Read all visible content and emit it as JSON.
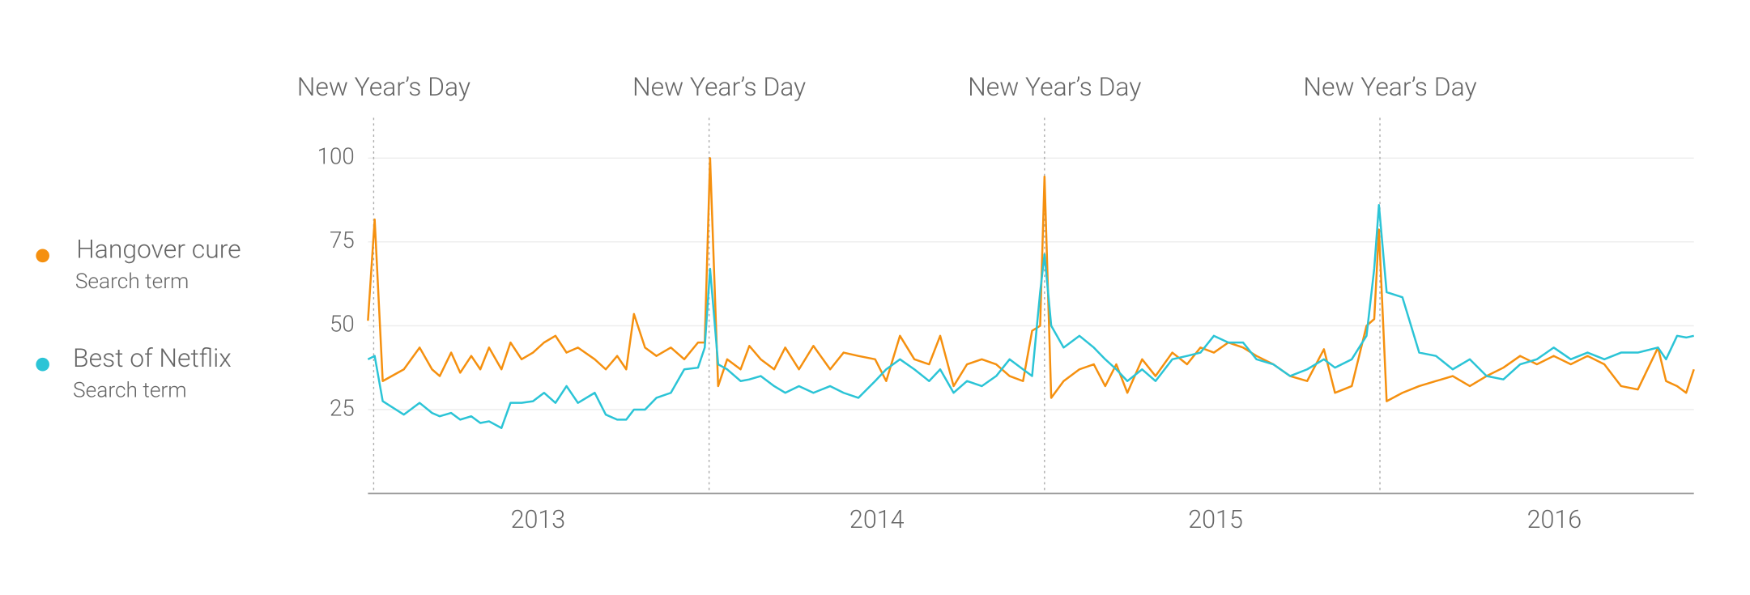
{
  "chart_data": {
    "type": "line",
    "x": [
      2012.983,
      2013.003,
      2013.027,
      2013.09,
      2013.137,
      2013.174,
      2013.197,
      2013.231,
      2013.258,
      2013.291,
      2013.318,
      2013.344,
      2013.381,
      2013.408,
      2013.441,
      2013.475,
      2013.508,
      2013.542,
      2013.575,
      2013.609,
      2013.659,
      2013.692,
      2013.726,
      2013.753,
      2013.776,
      2013.809,
      2013.843,
      2013.886,
      2013.926,
      2013.967,
      2013.987,
      2014.003,
      2014.027,
      2014.054,
      2014.094,
      2014.12,
      2014.154,
      2014.194,
      2014.227,
      2014.268,
      2014.311,
      2014.361,
      2014.401,
      2014.445,
      2014.495,
      2014.528,
      2014.569,
      2014.612,
      2014.656,
      2014.689,
      2014.729,
      2014.769,
      2014.813,
      2014.856,
      2014.896,
      2014.936,
      2014.963,
      2014.987,
      2015.0,
      2015.02,
      2015.057,
      2015.104,
      2015.147,
      2015.181,
      2015.214,
      2015.247,
      2015.291,
      2015.331,
      2015.381,
      2015.425,
      2015.465,
      2015.505,
      2015.548,
      2015.592,
      2015.632,
      2015.682,
      2015.732,
      2015.783,
      2015.833,
      2015.866,
      2015.916,
      2015.96,
      2015.983,
      2015.997,
      2016.02,
      2016.067,
      2016.117,
      2016.167,
      2016.217,
      2016.268,
      2016.318,
      2016.368,
      2016.418,
      2016.468,
      2016.518,
      2016.569,
      2016.619,
      2016.669,
      2016.719,
      2016.769,
      2016.829,
      2016.853,
      2016.886,
      2016.913,
      2016.936
    ],
    "series": [
      {
        "name": "Hangover cure",
        "kind": "Search term",
        "color": "#f5900f",
        "values": [
          51.5,
          81.7,
          33.5,
          37,
          43.5,
          37,
          35,
          42,
          36,
          41,
          37,
          43.5,
          37,
          45,
          40,
          42,
          45,
          47,
          42,
          43.5,
          40,
          37,
          41,
          37,
          53.5,
          43.5,
          41,
          43.5,
          40,
          45,
          45,
          100,
          32,
          40,
          37,
          44,
          40,
          37,
          43.5,
          37,
          44,
          37,
          42,
          41,
          40,
          33.5,
          47,
          40,
          38.5,
          47,
          32,
          38.5,
          40,
          38.5,
          35,
          33.5,
          48.5,
          50,
          94.5,
          28.5,
          33.5,
          37,
          38.5,
          32,
          38.5,
          30,
          40,
          35,
          42,
          38.5,
          43.5,
          42,
          45,
          43.5,
          41,
          38.5,
          35,
          33.5,
          43,
          30,
          32,
          50,
          52,
          78.7,
          27.5,
          30,
          32,
          33.5,
          35,
          32,
          35,
          37.5,
          41,
          38.5,
          41,
          38.5,
          41,
          38.5,
          32,
          31,
          43.5,
          33.5,
          32,
          30,
          37
        ]
      },
      {
        "name": "Best of Netflix",
        "kind": "Search term",
        "color": "#2bc4d6",
        "values": [
          40,
          41,
          27.5,
          23.5,
          27,
          24,
          23,
          24,
          22,
          23,
          21,
          21.5,
          19.5,
          27,
          27,
          27.5,
          30,
          27,
          32,
          27,
          30,
          23.5,
          22,
          22,
          25,
          25,
          28.5,
          30,
          37,
          37.5,
          43.5,
          67,
          38.5,
          37,
          33.5,
          34,
          35,
          32,
          30,
          32,
          30,
          32,
          30,
          28.5,
          33.5,
          37,
          40,
          37,
          33.5,
          37,
          30,
          33.5,
          32,
          35,
          40,
          37,
          35,
          60,
          71.3,
          50,
          43.5,
          47,
          43.5,
          40,
          37,
          33.5,
          37,
          33.5,
          40,
          41,
          42,
          47,
          45,
          45,
          40,
          38.5,
          35,
          37,
          40,
          37.5,
          40,
          47,
          67,
          86,
          60,
          58.5,
          42,
          41,
          37,
          40,
          35,
          34,
          38.5,
          40,
          43.5,
          40,
          42,
          40,
          42,
          42,
          43.5,
          40,
          47,
          46.5,
          47
        ]
      }
    ],
    "events": [
      {
        "label": "New Year’s Day",
        "x": 2013
      },
      {
        "label": "New Year’s Day",
        "x": 2014
      },
      {
        "label": "New Year’s Day",
        "x": 2015
      },
      {
        "label": "New Year’s Day",
        "x": 2016
      }
    ],
    "xlim": [
      2012.983,
      2016.936
    ],
    "xticks": [
      {
        "value": 2013.49,
        "label": "2013"
      },
      {
        "value": 2014.5,
        "label": "2014"
      },
      {
        "value": 2015.51,
        "label": "2015"
      },
      {
        "value": 2016.52,
        "label": "2016"
      }
    ],
    "ylim": [
      0,
      100
    ],
    "yticks": [
      25,
      50,
      75,
      100
    ],
    "grid": true
  }
}
